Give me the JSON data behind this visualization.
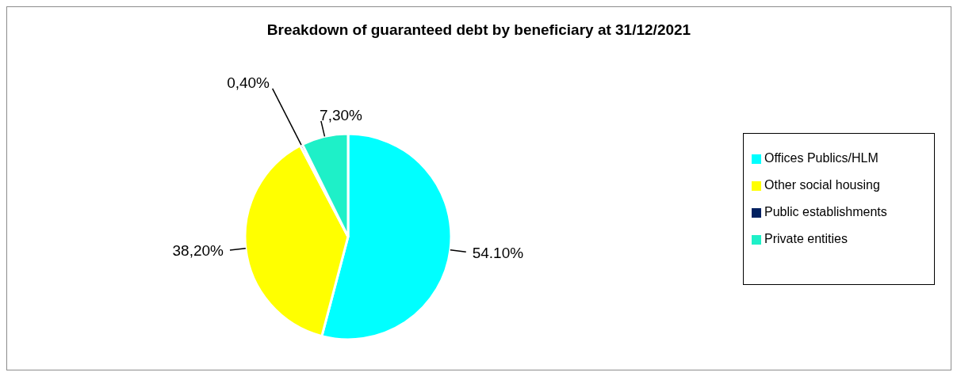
{
  "chart_data": {
    "type": "pie",
    "title": "Breakdown of guaranteed debt by beneficiary at 31/12/2021",
    "categories": [
      "Offices Publics/HLM",
      "Other social housing",
      "Public establishments",
      "Private entities"
    ],
    "values": [
      54.1,
      38.2,
      0.4,
      7.3
    ],
    "value_labels": [
      "54.10%",
      "38,20%",
      "0,40%",
      "7,30%"
    ],
    "colors": [
      "#00ffff",
      "#ffff00",
      "#002060",
      "#1ef0c8"
    ],
    "legend": "right"
  }
}
